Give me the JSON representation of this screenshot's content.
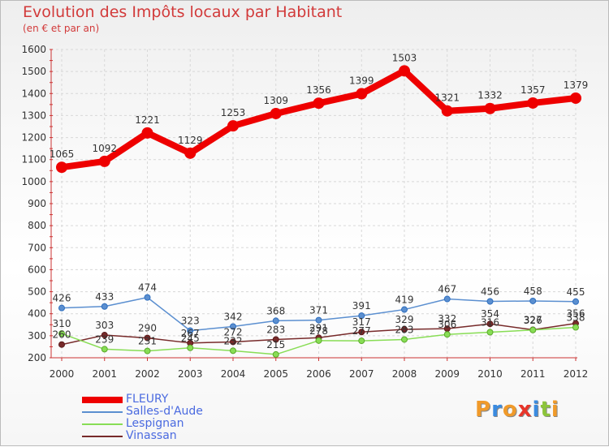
{
  "header": {
    "title": "Evolution des Impôts locaux par Habitant",
    "subtitle": "(en € et par an)"
  },
  "chart_data": {
    "type": "line",
    "title": "Evolution des Impôts locaux par Habitant",
    "subtitle": "(en € et par an)",
    "xlabel": "",
    "ylabel": "",
    "x": [
      "2000",
      "2001",
      "2002",
      "2003",
      "2004",
      "2005",
      "2006",
      "2007",
      "2008",
      "2009",
      "2010",
      "2011",
      "2012"
    ],
    "ylim": [
      200,
      1600
    ],
    "yticks": [
      200,
      300,
      400,
      500,
      600,
      700,
      800,
      900,
      1000,
      1100,
      1200,
      1300,
      1400,
      1500,
      1600
    ],
    "grid": true,
    "legend_position": "bottom-left",
    "series": [
      {
        "name": "FLEURY",
        "color": "#ee0000",
        "values": [
          1065,
          1092,
          1221,
          1129,
          1253,
          1309,
          1356,
          1399,
          1503,
          1321,
          1332,
          1357,
          1379
        ]
      },
      {
        "name": "Salles-d'Aude",
        "color": "#5b8fd0",
        "values": [
          426,
          433,
          474,
          323,
          342,
          368,
          371,
          391,
          419,
          467,
          456,
          458,
          455
        ]
      },
      {
        "name": "Lespignan",
        "color": "#88dd55",
        "values": [
          310,
          239,
          231,
          245,
          232,
          215,
          278,
          277,
          283,
          306,
          316,
          326,
          338
        ]
      },
      {
        "name": "Vinassan",
        "color": "#772a2a",
        "values": [
          260,
          303,
          290,
          267,
          272,
          283,
          291,
          317,
          329,
          332,
          354,
          327,
          356
        ]
      }
    ]
  },
  "logo": {
    "letters": [
      "P",
      "r",
      "o",
      "x",
      "i",
      "t",
      "i"
    ],
    "colors": [
      "#f09a2a",
      "#3a8be0",
      "#f09a2a",
      "#e8352a",
      "#3a8be0",
      "#8cc43a",
      "#f09a2a"
    ]
  }
}
